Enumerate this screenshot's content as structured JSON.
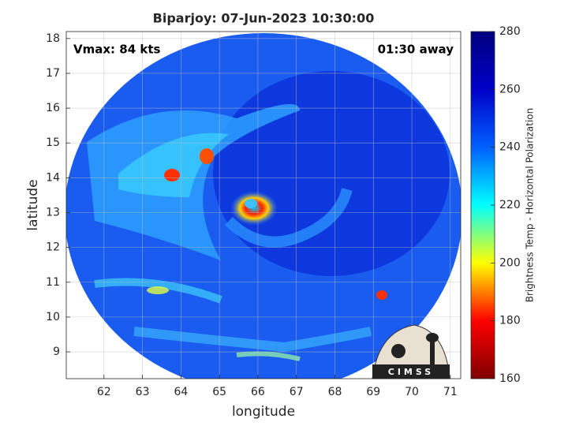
{
  "chart_data": {
    "type": "image",
    "title": "Biparjoy: 07-Jun-2023 10:30:00",
    "annotations": [
      "Vmax: 84 kts",
      "01:30 away"
    ],
    "xlabel": "longitude",
    "ylabel": "latitude",
    "xlim": [
      61.02,
      71.27
    ],
    "xticks": [
      62,
      63,
      64,
      65,
      66,
      67,
      68,
      69,
      70,
      71
    ],
    "ylim": [
      8.23,
      18.2
    ],
    "yticks": [
      9,
      10,
      11,
      12,
      13,
      14,
      15,
      16,
      17,
      18
    ],
    "grid": true,
    "colorbar": {
      "label": "Brightness Temp - Horizontal Polarization",
      "clim": [
        160,
        280
      ],
      "ticks": [
        160,
        180,
        200,
        220,
        240,
        260,
        280
      ],
      "colormap": [
        "#7f0000",
        "#ff0000",
        "#ffff00",
        "#00ffff",
        "#0060ff",
        "#0000c8",
        "#00007f"
      ]
    },
    "logo": "CIMSS"
  }
}
